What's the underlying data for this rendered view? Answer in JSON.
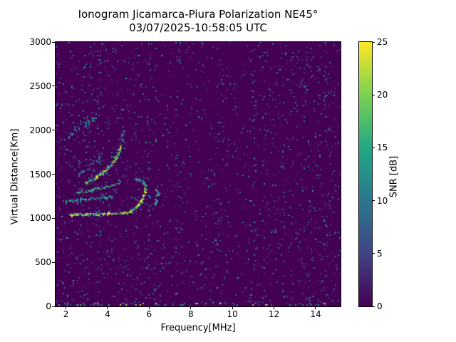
{
  "chart_data": {
    "type": "heatmap",
    "title": "Ionogram Jicamarca-Piura Polarization NE45°",
    "subtitle": "03/07/2025-10:58:05 UTC",
    "xlabel": "Frequency[MHz]",
    "ylabel": "Virtual Distance[Km]",
    "xlim": [
      1.5,
      15.2
    ],
    "ylim": [
      0,
      3000
    ],
    "xticks": [
      2,
      4,
      6,
      8,
      10,
      12,
      14
    ],
    "yticks": [
      0,
      500,
      1000,
      1500,
      2000,
      2500,
      3000
    ],
    "grid": false,
    "legend": "none",
    "colorbar": {
      "label": "SNR [dB]",
      "ticks": [
        0,
        5,
        10,
        15,
        20,
        25
      ],
      "range": [
        0,
        25
      ],
      "colormap": "viridis",
      "position": "right"
    },
    "colors": {
      "background_min_snr": "#440154",
      "mid_snr_teal": "#21918c",
      "high_snr_green": "#5ec962",
      "max_snr_yellow": "#fde725",
      "figure_background": "#ffffff",
      "axes_and_text": "#000000"
    },
    "background_snr": 0,
    "echo_traces": [
      {
        "name": "upper-diffuse-second-hop-arc",
        "points": [
          [
            2.08,
            1925
          ],
          [
            2.5,
            1995
          ],
          [
            2.9,
            2060
          ],
          [
            3.3,
            2130
          ],
          [
            3.7,
            2210
          ]
        ],
        "snr": [
          6,
          13
        ],
        "spread_km": 70,
        "density": 0.45
      },
      {
        "name": "faint-halo-above-main-arc",
        "points": [
          [
            2.55,
            1490
          ],
          [
            2.95,
            1555
          ],
          [
            3.35,
            1625
          ],
          [
            3.75,
            1695
          ]
        ],
        "snr": [
          5,
          10
        ],
        "spread_km": 60,
        "density": 0.3
      },
      {
        "name": "main-f-layer-arc",
        "points": [
          [
            2.95,
            1395
          ],
          [
            3.35,
            1445
          ],
          [
            3.75,
            1515
          ],
          [
            4.1,
            1585
          ],
          [
            4.35,
            1655
          ],
          [
            4.52,
            1725
          ],
          [
            4.63,
            1805
          ]
        ],
        "snr": [
          13,
          25
        ],
        "spread_km": 35,
        "density": 1.0
      },
      {
        "name": "main-arc-vertical-tail",
        "points": [
          [
            4.68,
            1820
          ],
          [
            4.72,
            1905
          ],
          [
            4.75,
            2000
          ]
        ],
        "snr": [
          7,
          13
        ],
        "spread_km": 30,
        "density": 0.5
      },
      {
        "name": "multilayer-band-upper",
        "points": [
          [
            2.55,
            1290
          ],
          [
            3.1,
            1315
          ],
          [
            3.7,
            1340
          ],
          [
            4.3,
            1370
          ],
          [
            4.55,
            1392
          ]
        ],
        "snr": [
          8,
          19
        ],
        "spread_km": 30,
        "density": 0.65
      },
      {
        "name": "multilayer-band-lower",
        "points": [
          [
            1.95,
            1190
          ],
          [
            2.5,
            1205
          ],
          [
            3.1,
            1215
          ],
          [
            3.7,
            1228
          ],
          [
            4.25,
            1245
          ]
        ],
        "snr": [
          8,
          17
        ],
        "spread_km": 28,
        "density": 0.55
      },
      {
        "name": "bottom-bright-trace-1000km",
        "points": [
          [
            2.2,
            1035
          ],
          [
            2.8,
            1040
          ],
          [
            3.5,
            1046
          ],
          [
            4.2,
            1052
          ],
          [
            4.8,
            1058
          ],
          [
            5.1,
            1072
          ],
          [
            5.35,
            1112
          ],
          [
            5.6,
            1185
          ],
          [
            5.77,
            1270
          ],
          [
            5.84,
            1345
          ]
        ],
        "snr": [
          16,
          25
        ],
        "spread_km": 20,
        "density": 1.1
      },
      {
        "name": "cusp-foldback-top",
        "points": [
          [
            5.84,
            1365
          ],
          [
            5.74,
            1410
          ],
          [
            5.55,
            1435
          ],
          [
            5.35,
            1435
          ]
        ],
        "snr": [
          11,
          19
        ],
        "spread_km": 20,
        "density": 0.75
      },
      {
        "name": "detached-arc-6mhz",
        "points": [
          [
            6.28,
            1150
          ],
          [
            6.38,
            1215
          ],
          [
            6.42,
            1280
          ],
          [
            6.33,
            1330
          ]
        ],
        "snr": [
          10,
          17
        ],
        "spread_km": 18,
        "density": 0.7
      }
    ],
    "noise": {
      "bands": [
        {
          "f_range": [
            1.5,
            6.6
          ],
          "density": 0.05
        },
        {
          "f_range": [
            6.6,
            8.4
          ],
          "density": 0.032
        },
        {
          "f_range": [
            8.4,
            9.6
          ],
          "density": 0.042
        },
        {
          "f_range": [
            9.6,
            11.3
          ],
          "density": 0.022
        },
        {
          "f_range": [
            11.3,
            13.2
          ],
          "density": 0.046
        },
        {
          "f_range": [
            13.2,
            15.2
          ],
          "density": 0.055
        }
      ],
      "rfi_stripes": [
        {
          "f": 3.62,
          "density": 0.1,
          "max_snr": 9
        },
        {
          "f": 5.98,
          "density": 0.07,
          "max_snr": 8
        },
        {
          "f": 7.33,
          "density": 0.09,
          "max_snr": 9
        },
        {
          "f": 9.74,
          "density": 0.08,
          "max_snr": 8
        },
        {
          "f": 10.9,
          "density": 0.08,
          "max_snr": 8
        },
        {
          "f": 11.07,
          "density": 0.16,
          "max_snr": 10
        },
        {
          "f": 12.5,
          "density": 0.06,
          "max_snr": 8
        },
        {
          "f": 14.5,
          "density": 0.08,
          "max_snr": 9
        }
      ],
      "ground_clutter": {
        "h_range": [
          0,
          30
        ],
        "density": 0.24,
        "snr": [
          4,
          25
        ]
      },
      "low_altitude_band": {
        "h_range": [
          30,
          90
        ],
        "density": 0.07,
        "snr": [
          3,
          10
        ]
      }
    }
  }
}
